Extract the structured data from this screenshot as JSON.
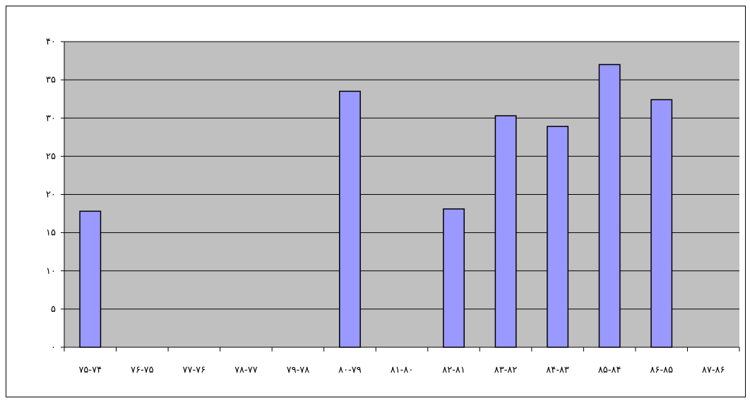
{
  "chart_data": {
    "type": "bar",
    "categories": [
      "۷۵-۷۴",
      "۷۶-۷۵",
      "۷۷-۷۶",
      "۷۸-۷۷",
      "۷۹-۷۸",
      "۸۰-۷۹",
      "۸۱-۸۰",
      "۸۲-۸۱",
      "۸۳-۸۲",
      "۸۴-۸۳",
      "۸۵-۸۴",
      "۸۶-۸۵",
      "۸۷-۸۶"
    ],
    "values": [
      17.8,
      0,
      0,
      0,
      0,
      33.5,
      0,
      18.1,
      30.3,
      28.9,
      37,
      32.4,
      0
    ],
    "ylim": [
      0,
      40
    ],
    "ytick_values": [
      0,
      5,
      10,
      15,
      20,
      25,
      30,
      35,
      40
    ],
    "ytick_labels": [
      "۰",
      "۵",
      "۱۰",
      "۱۵",
      "۲۰",
      "۲۵",
      "۳۰",
      "۳۵",
      "۴۰"
    ],
    "title": "",
    "xlabel": "",
    "ylabel": "",
    "grid": true,
    "legend": "none",
    "colors": {
      "plot_background": "#c0c0c0",
      "bar_fill": "#9999ff",
      "bar_stroke": "#000000",
      "gridline": "#000000"
    }
  }
}
